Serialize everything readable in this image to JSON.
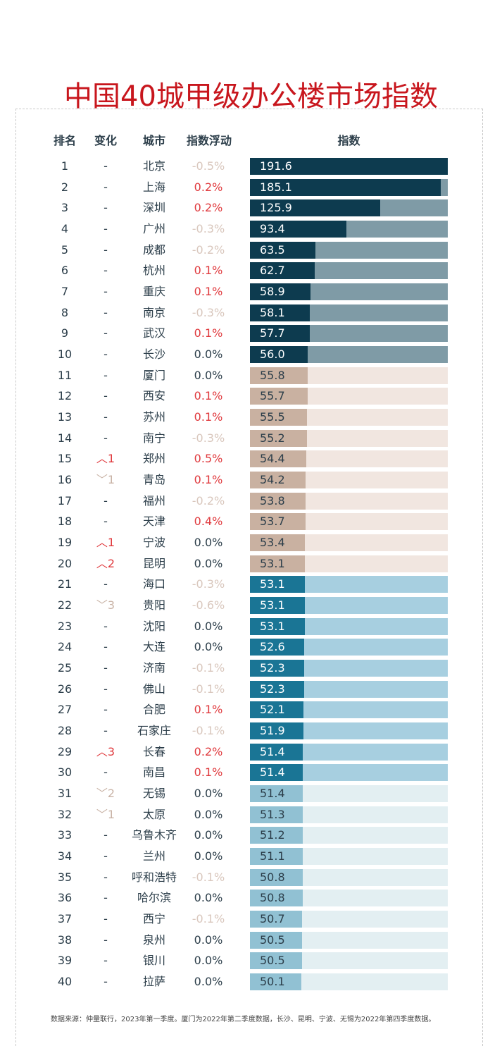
{
  "chart_data": {
    "type": "bar",
    "title": "中国40城甲级办公楼市场指数",
    "headers": {
      "rank": "排名",
      "change": "变化",
      "city": "城市",
      "fluct": "指数浮动",
      "index": "指数"
    },
    "xlim": [
      0,
      191.6
    ],
    "group_colors": [
      {
        "bar": "#0d3b4f",
        "track": "#7f9ba6",
        "text": "#ffffff"
      },
      {
        "bar": "#c9b1a1",
        "track": "#f1e6e0",
        "text": "#2c3e4a"
      },
      {
        "bar": "#1a7595",
        "track": "#a7cfe0",
        "text": "#ffffff"
      },
      {
        "bar": "#91c1d3",
        "track": "#e3eff2",
        "text": "#2c3e4a"
      }
    ],
    "rows": [
      {
        "rank": "1",
        "change": "-",
        "city": "北京",
        "fluct": "-0.5%",
        "value": 191.6
      },
      {
        "rank": "2",
        "change": "-",
        "city": "上海",
        "fluct": "0.2%",
        "value": 185.1
      },
      {
        "rank": "3",
        "change": "-",
        "city": "深圳",
        "fluct": "0.2%",
        "value": 125.9
      },
      {
        "rank": "4",
        "change": "-",
        "city": "广州",
        "fluct": "-0.3%",
        "value": 93.4
      },
      {
        "rank": "5",
        "change": "-",
        "city": "成都",
        "fluct": "-0.2%",
        "value": 63.5
      },
      {
        "rank": "6",
        "change": "-",
        "city": "杭州",
        "fluct": "0.1%",
        "value": 62.7
      },
      {
        "rank": "7",
        "change": "-",
        "city": "重庆",
        "fluct": "0.1%",
        "value": 58.9
      },
      {
        "rank": "8",
        "change": "-",
        "city": "南京",
        "fluct": "-0.3%",
        "value": 58.1
      },
      {
        "rank": "9",
        "change": "-",
        "city": "武汉",
        "fluct": "0.1%",
        "value": 57.7
      },
      {
        "rank": "10",
        "change": "-",
        "city": "长沙",
        "fluct": "0.0%",
        "value": 56.0
      },
      {
        "rank": "11",
        "change": "-",
        "city": "厦门",
        "fluct": "0.0%",
        "value": 55.8
      },
      {
        "rank": "12",
        "change": "-",
        "city": "西安",
        "fluct": "0.1%",
        "value": 55.7
      },
      {
        "rank": "13",
        "change": "-",
        "city": "苏州",
        "fluct": "0.1%",
        "value": 55.5
      },
      {
        "rank": "14",
        "change": "-",
        "city": "南宁",
        "fluct": "-0.3%",
        "value": 55.2
      },
      {
        "rank": "15",
        "change": "︿1",
        "city": "郑州",
        "fluct": "0.5%",
        "value": 54.4
      },
      {
        "rank": "16",
        "change": "﹀1",
        "city": "青岛",
        "fluct": "0.1%",
        "value": 54.2
      },
      {
        "rank": "17",
        "change": "-",
        "city": "福州",
        "fluct": "-0.2%",
        "value": 53.8
      },
      {
        "rank": "18",
        "change": "-",
        "city": "天津",
        "fluct": "0.4%",
        "value": 53.7
      },
      {
        "rank": "19",
        "change": "︿1",
        "city": "宁波",
        "fluct": "0.0%",
        "value": 53.4
      },
      {
        "rank": "20",
        "change": "︿2",
        "city": "昆明",
        "fluct": "0.0%",
        "value": 53.1
      },
      {
        "rank": "21",
        "change": "-",
        "city": "海口",
        "fluct": "-0.3%",
        "value": 53.1
      },
      {
        "rank": "22",
        "change": "﹀3",
        "city": "贵阳",
        "fluct": "-0.6%",
        "value": 53.1
      },
      {
        "rank": "23",
        "change": "-",
        "city": "沈阳",
        "fluct": "0.0%",
        "value": 53.1
      },
      {
        "rank": "24",
        "change": "-",
        "city": "大连",
        "fluct": "0.0%",
        "value": 52.6
      },
      {
        "rank": "25",
        "change": "-",
        "city": "济南",
        "fluct": "-0.1%",
        "value": 52.3
      },
      {
        "rank": "26",
        "change": "-",
        "city": "佛山",
        "fluct": "-0.1%",
        "value": 52.3
      },
      {
        "rank": "27",
        "change": "-",
        "city": "合肥",
        "fluct": "0.1%",
        "value": 52.1
      },
      {
        "rank": "28",
        "change": "-",
        "city": "石家庄",
        "fluct": "-0.1%",
        "value": 51.9
      },
      {
        "rank": "29",
        "change": "︿3",
        "city": "长春",
        "fluct": "0.2%",
        "value": 51.4
      },
      {
        "rank": "30",
        "change": "-",
        "city": "南昌",
        "fluct": "0.1%",
        "value": 51.4
      },
      {
        "rank": "31",
        "change": "﹀2",
        "city": "无锡",
        "fluct": "0.0%",
        "value": 51.4
      },
      {
        "rank": "32",
        "change": "﹀1",
        "city": "太原",
        "fluct": "0.0%",
        "value": 51.3
      },
      {
        "rank": "33",
        "change": "-",
        "city": "乌鲁木齐",
        "fluct": "0.0%",
        "value": 51.2
      },
      {
        "rank": "34",
        "change": "-",
        "city": "兰州",
        "fluct": "0.0%",
        "value": 51.1
      },
      {
        "rank": "35",
        "change": "-",
        "city": "呼和浩特",
        "fluct": "-0.1%",
        "value": 50.8
      },
      {
        "rank": "36",
        "change": "-",
        "city": "哈尔滨",
        "fluct": "0.0%",
        "value": 50.8
      },
      {
        "rank": "37",
        "change": "-",
        "city": "西宁",
        "fluct": "-0.1%",
        "value": 50.7
      },
      {
        "rank": "38",
        "change": "-",
        "city": "泉州",
        "fluct": "0.0%",
        "value": 50.5
      },
      {
        "rank": "39",
        "change": "-",
        "city": "银川",
        "fluct": "0.0%",
        "value": 50.5
      },
      {
        "rank": "40",
        "change": "-",
        "city": "拉萨",
        "fluct": "0.0%",
        "value": 50.1
      }
    ],
    "source": "数据来源：仲量联行，2023年第一季度。厦门为2022年第二季度数据，长沙、昆明、宁波、无锡为2022年第四季度数据。"
  }
}
